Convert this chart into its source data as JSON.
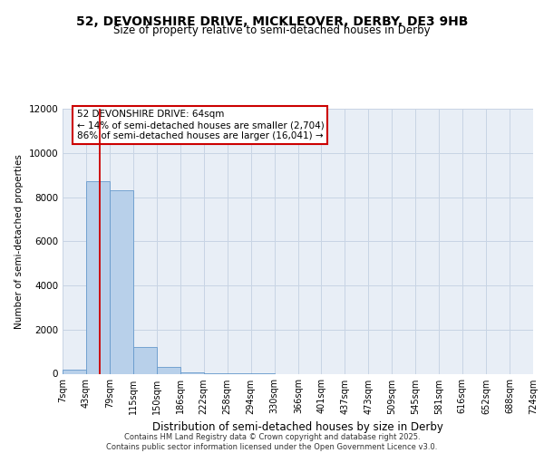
{
  "title_line1": "52, DEVONSHIRE DRIVE, MICKLEOVER, DERBY, DE3 9HB",
  "title_line2": "Size of property relative to semi-detached houses in Derby",
  "xlabel": "Distribution of semi-detached houses by size in Derby",
  "ylabel": "Number of semi-detached properties",
  "footer_line1": "Contains HM Land Registry data © Crown copyright and database right 2025.",
  "footer_line2": "Contains public sector information licensed under the Open Government Licence v3.0.",
  "annotation_title": "52 DEVONSHIRE DRIVE: 64sqm",
  "annotation_line1": "← 14% of semi-detached houses are smaller (2,704)",
  "annotation_line2": "86% of semi-detached houses are larger (16,041) →",
  "property_size": 64,
  "bar_edges": [
    7,
    43,
    79,
    115,
    150,
    186,
    222,
    258,
    294,
    330,
    366,
    401,
    437,
    473,
    509,
    545,
    581,
    616,
    652,
    688,
    724
  ],
  "bar_heights": [
    200,
    8700,
    8300,
    1200,
    320,
    70,
    20,
    4,
    2,
    0,
    0,
    0,
    0,
    0,
    0,
    0,
    0,
    0,
    0,
    0
  ],
  "bar_color": "#b8d0ea",
  "bar_edge_color": "#6699cc",
  "red_line_color": "#cc0000",
  "grid_color": "#c8d4e4",
  "background_color": "#e8eef6",
  "annotation_box_color": "#ffffff",
  "annotation_border_color": "#cc0000",
  "ylim": [
    0,
    12000
  ],
  "yticks": [
    0,
    2000,
    4000,
    6000,
    8000,
    10000,
    12000
  ],
  "title_fontsize": 10,
  "subtitle_fontsize": 8.5,
  "ylabel_fontsize": 7.5,
  "xlabel_fontsize": 8.5,
  "tick_fontsize": 7,
  "footer_fontsize": 6,
  "annotation_fontsize": 7.5
}
